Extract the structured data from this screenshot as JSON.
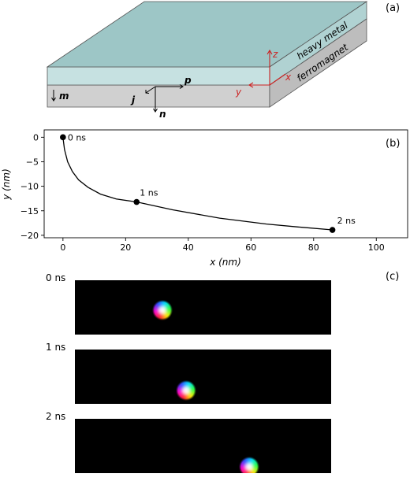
{
  "panel_a": {
    "tag": "(a)",
    "layers": [
      "heavy metal",
      "ferromagnet"
    ],
    "vectors": {
      "m": "m",
      "j": "j",
      "p": "p",
      "n": "n"
    },
    "axes": {
      "z": "z",
      "x": "x",
      "y": "y"
    },
    "colors": {
      "heavy_metal_top": "#9dc6c6",
      "heavy_metal_side": "#c6e1e1",
      "ferromagnet": "#d0d0d0",
      "axis_red": "#cc2222"
    }
  },
  "panel_b": {
    "tag": "(b)",
    "chart_data": {
      "type": "line",
      "xlabel": "x (nm)",
      "ylabel": "y (nm)",
      "xlim": [
        -6,
        110
      ],
      "ylim": [
        -20.5,
        1.5
      ],
      "xticks": [
        0,
        20,
        40,
        60,
        80,
        100
      ],
      "yticks": [
        0,
        -5,
        -10,
        -15,
        -20
      ],
      "series": [
        {
          "x": [
            0,
            0.5,
            1.5,
            3,
            5,
            8,
            12,
            17,
            23.5,
            35,
            50,
            65,
            75,
            86
          ],
          "y": [
            0,
            -2.5,
            -5,
            -7,
            -8.7,
            -10.2,
            -11.6,
            -12.6,
            -13.2,
            -14.8,
            -16.5,
            -17.7,
            -18.3,
            -18.9
          ]
        }
      ],
      "markers": [
        {
          "x": 0,
          "y": 0,
          "label": "0 ns"
        },
        {
          "x": 23.5,
          "y": -13.2,
          "label": "1 ns"
        },
        {
          "x": 86,
          "y": -18.9,
          "label": "2 ns"
        }
      ],
      "grid": false
    }
  },
  "panel_c": {
    "tag": "(c)",
    "frames": [
      {
        "label": "0 ns",
        "pos": 0.34
      },
      {
        "label": "1 ns",
        "pos": 0.435
      },
      {
        "label": "2 ns",
        "pos": 0.68
      }
    ]
  }
}
